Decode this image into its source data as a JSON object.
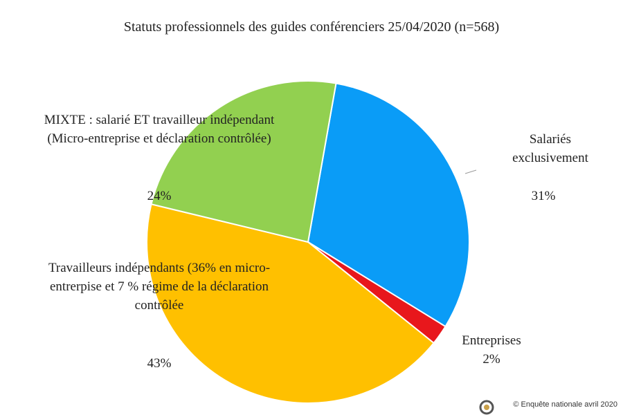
{
  "chart_data": {
    "type": "pie",
    "title": "Statuts professionnels des guides conférenciers 25/04/2020 (n=568)",
    "categories": [
      "Salariés exclusivement",
      "Entreprises",
      "Travailleurs indépendants (36% en micro-entrerpise et 7 % régime de la déclaration contrôlée",
      "MIXTE : salarié ET travailleur indépendant (Micro-entreprise et déclaration contrôlée)"
    ],
    "values": [
      31,
      2,
      43,
      24
    ],
    "value_labels": [
      "31%",
      "2%",
      "43%",
      "24%"
    ],
    "colors": [
      "#0a9cf7",
      "#e8171c",
      "#ffc000",
      "#92d050"
    ],
    "footer": "© Enquête nationale avril 2020"
  }
}
